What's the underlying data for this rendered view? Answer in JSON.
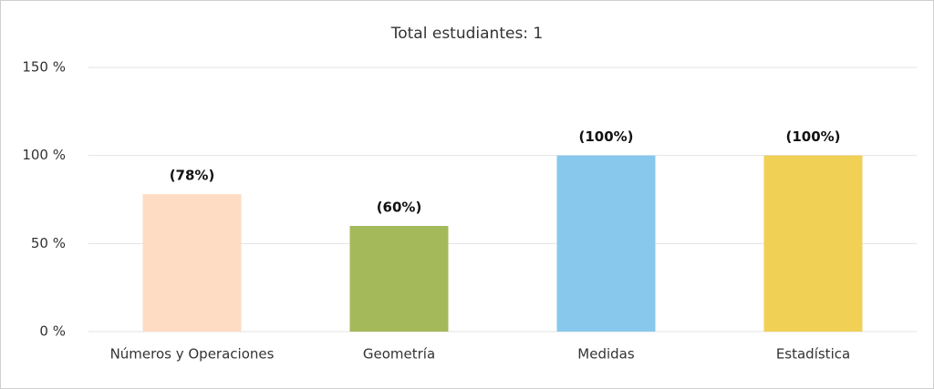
{
  "chart_data": {
    "type": "bar",
    "title": "Total estudiantes: 1",
    "categories": [
      "Números y Operaciones",
      "Geometría",
      "Medidas",
      "Estadística"
    ],
    "values": [
      78,
      60,
      100,
      100
    ],
    "value_labels": [
      "(78%)",
      "(60%)",
      "(100%)",
      "(100%)"
    ],
    "colors": [
      "#fddcc3",
      "#a4b95a",
      "#88c8ec",
      "#f0d055"
    ],
    "ylim": [
      0,
      150
    ],
    "yticks": [
      {
        "value": 0,
        "label": "0 %"
      },
      {
        "value": 50,
        "label": "50 %"
      },
      {
        "value": 100,
        "label": "100 %"
      },
      {
        "value": 150,
        "label": "150 %"
      }
    ],
    "grid": true
  }
}
